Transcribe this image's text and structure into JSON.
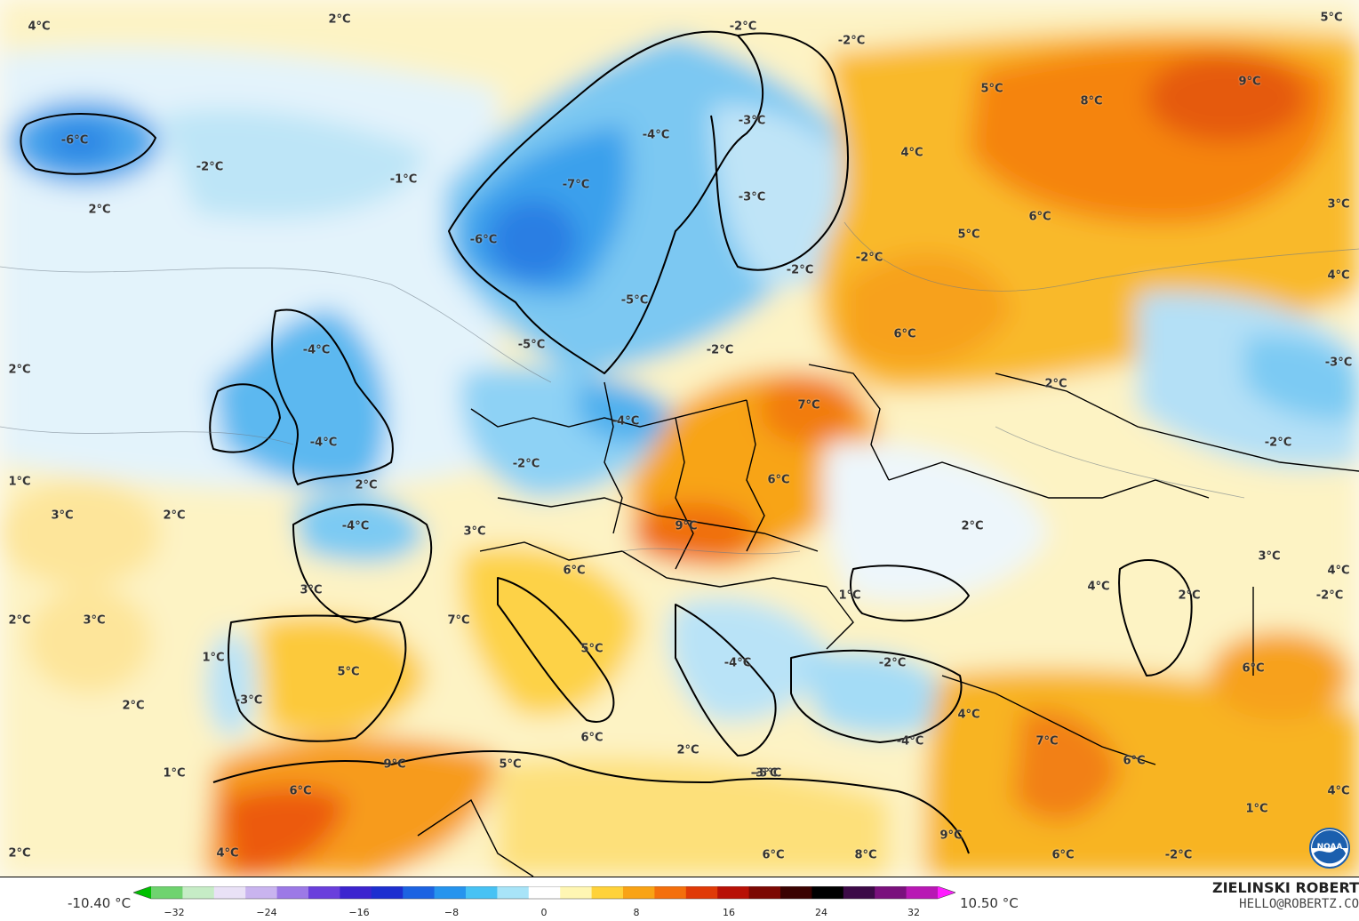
{
  "map": {
    "colors": {
      "cold_deep": "#1e7be0",
      "cold": "#38b6f0",
      "cool": "#a6def5",
      "cool_light": "#d7eefa",
      "neutral": "#ffffff",
      "warm_light": "#fdf0b8",
      "warm": "#fdd54a",
      "warmer": "#f8b020",
      "hot": "#f57c10",
      "hotter": "#e64d0a",
      "border": "#000000"
    },
    "temperature_labels": [
      {
        "id": "t1",
        "text": "4°C"
      },
      {
        "id": "t2",
        "text": "2°C"
      },
      {
        "id": "t3",
        "text": "-2°C"
      },
      {
        "id": "t4",
        "text": "-2°C"
      },
      {
        "id": "t5",
        "text": "-6°C"
      },
      {
        "id": "t6",
        "text": "-4°C"
      },
      {
        "id": "t7",
        "text": "-3°C"
      },
      {
        "id": "t8",
        "text": "5°C"
      },
      {
        "id": "t9",
        "text": "8°C"
      },
      {
        "id": "t10",
        "text": "9°C"
      },
      {
        "id": "t11",
        "text": "-2°C"
      },
      {
        "id": "t12",
        "text": "-1°C"
      },
      {
        "id": "t13",
        "text": "4°C"
      },
      {
        "id": "t14",
        "text": "2°C"
      },
      {
        "id": "t15",
        "text": "-7°C"
      },
      {
        "id": "t16",
        "text": "-3°C"
      },
      {
        "id": "t17",
        "text": "6°C"
      },
      {
        "id": "t18",
        "text": "3°C"
      },
      {
        "id": "t19",
        "text": "-6°C"
      },
      {
        "id": "t20",
        "text": "5°C"
      },
      {
        "id": "t21",
        "text": "-2°C"
      },
      {
        "id": "t22",
        "text": "-2°C"
      },
      {
        "id": "t23",
        "text": "4°C"
      },
      {
        "id": "t24",
        "text": "-5°C"
      },
      {
        "id": "t25",
        "text": "6°C"
      },
      {
        "id": "t26",
        "text": "-5°C"
      },
      {
        "id": "t27",
        "text": "-4°C"
      },
      {
        "id": "t28",
        "text": "-2°C"
      },
      {
        "id": "t29",
        "text": "-3°C"
      },
      {
        "id": "t30",
        "text": "2°C"
      },
      {
        "id": "t31",
        "text": "2°C"
      },
      {
        "id": "t32",
        "text": "7°C"
      },
      {
        "id": "t33",
        "text": "-4°C"
      },
      {
        "id": "t34",
        "text": "-2°C"
      },
      {
        "id": "t35",
        "text": "-4°C"
      },
      {
        "id": "t36",
        "text": "-2°C"
      },
      {
        "id": "t37",
        "text": "1°C"
      },
      {
        "id": "t38",
        "text": "2°C"
      },
      {
        "id": "t39",
        "text": "6°C"
      },
      {
        "id": "t40",
        "text": "3°C"
      },
      {
        "id": "t41",
        "text": "2°C"
      },
      {
        "id": "t42",
        "text": "-4°C"
      },
      {
        "id": "t43",
        "text": "3°C"
      },
      {
        "id": "t44",
        "text": "9°C"
      },
      {
        "id": "t45",
        "text": "2°C"
      },
      {
        "id": "t46",
        "text": "3°C"
      },
      {
        "id": "t47",
        "text": "4°C"
      },
      {
        "id": "t48",
        "text": "4°C"
      },
      {
        "id": "t49",
        "text": "6°C"
      },
      {
        "id": "t50",
        "text": "3°C"
      },
      {
        "id": "t51",
        "text": "1°C"
      },
      {
        "id": "t52",
        "text": "-2°C"
      },
      {
        "id": "t53",
        "text": "2°C"
      },
      {
        "id": "t54",
        "text": "2°C"
      },
      {
        "id": "t55",
        "text": "3°C"
      },
      {
        "id": "t56",
        "text": "7°C"
      },
      {
        "id": "t57",
        "text": "1°C"
      },
      {
        "id": "t58",
        "text": "5°C"
      },
      {
        "id": "t59",
        "text": "-4°C"
      },
      {
        "id": "t60",
        "text": "6°C"
      },
      {
        "id": "t61",
        "text": "-2°C"
      },
      {
        "id": "t62",
        "text": "2°C"
      },
      {
        "id": "t63",
        "text": "-3°C"
      },
      {
        "id": "t64",
        "text": "4°C"
      },
      {
        "id": "t65",
        "text": "6°C"
      },
      {
        "id": "t66",
        "text": "7°C"
      },
      {
        "id": "t67",
        "text": "-4°C"
      },
      {
        "id": "t68",
        "text": "5°C"
      },
      {
        "id": "t69",
        "text": "1°C"
      },
      {
        "id": "t70",
        "text": "9°C"
      },
      {
        "id": "t71",
        "text": "5°C"
      },
      {
        "id": "t72",
        "text": "2°C"
      },
      {
        "id": "t73",
        "text": "-5°C"
      },
      {
        "id": "t74",
        "text": "6°C"
      },
      {
        "id": "t75",
        "text": "6°C"
      },
      {
        "id": "t76",
        "text": "4°C"
      },
      {
        "id": "t77",
        "text": "1°C"
      },
      {
        "id": "t78",
        "text": "9°C"
      },
      {
        "id": "t79",
        "text": "2°C"
      },
      {
        "id": "t80",
        "text": "4°C"
      },
      {
        "id": "t81",
        "text": "6°C"
      },
      {
        "id": "t82",
        "text": "8°C"
      },
      {
        "id": "t83",
        "text": "6°C"
      },
      {
        "id": "t84",
        "text": "-2°C"
      },
      {
        "id": "t85",
        "text": "5°C"
      },
      {
        "id": "t86",
        "text": "-3°C"
      }
    ]
  },
  "legend": {
    "min_label": "-10.40 °C",
    "max_label": "10.50 °C",
    "ticks": [
      "−32",
      "−24",
      "−16",
      "−8",
      "0",
      "8",
      "16",
      "24",
      "32"
    ],
    "scale_colors": [
      "#00c000",
      "#6fd36f",
      "#c6ecc6",
      "#e9e1f6",
      "#c9b4ef",
      "#9c79e6",
      "#6a3fdc",
      "#3c24cf",
      "#1d2fd0",
      "#1c63e2",
      "#2694ee",
      "#47c2f4",
      "#a8e4f8",
      "#ffffff",
      "#fff6b3",
      "#ffd23a",
      "#f9a315",
      "#f46f0c",
      "#e03a07",
      "#b81106",
      "#7c0803",
      "#3a0201",
      "#000000",
      "#3c0a47",
      "#7a117d",
      "#b818b4",
      "#ff1cff"
    ]
  },
  "credit": {
    "name": "ZIELINSKI ROBERT",
    "email": "HELLO@ROBERTZ.CO"
  },
  "logo": {
    "text": "NOAA",
    "icon": "noaa-logo-icon"
  }
}
